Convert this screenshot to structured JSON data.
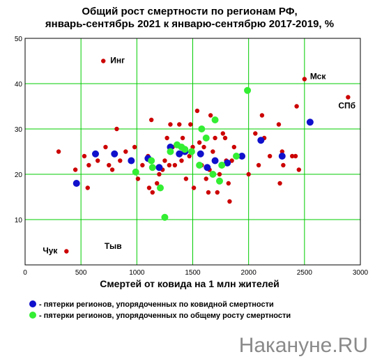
{
  "chart_data": {
    "type": "scatter",
    "title": "Общий рост смертности по регионам РФ, январь-сентябрь 2021 к январю-сентябрю 2017-2019, %",
    "title_lines": [
      "Общий рост смертности по регионам РФ,",
      "январь-сентябрь 2021 к январю-сентябрю 2017-2019, %"
    ],
    "xlabel": "Смертей от ковида на 1 млн жителей",
    "ylabel": "",
    "xlim": [
      0,
      3000
    ],
    "ylim": [
      0,
      50
    ],
    "x_ticks": [
      0,
      500,
      1000,
      1500,
      2000,
      2500,
      3000
    ],
    "y_ticks": [
      10,
      20,
      30,
      40,
      50
    ],
    "grid": true,
    "colors": {
      "grid": "#00cc00",
      "other": "#cc0000",
      "blue": "#1010cc",
      "green": "#33ee33"
    },
    "series": [
      {
        "color": "#cc0000",
        "points": [
          [
            300,
            25
          ],
          [
            370,
            3
          ],
          [
            450,
            21
          ],
          [
            530,
            24
          ],
          [
            560,
            17
          ],
          [
            570,
            22
          ],
          [
            650,
            23
          ],
          [
            700,
            45
          ],
          [
            720,
            26
          ],
          [
            750,
            22
          ],
          [
            780,
            21
          ],
          [
            820,
            30
          ],
          [
            850,
            23
          ],
          [
            900,
            25
          ],
          [
            980,
            26
          ],
          [
            1010,
            19
          ],
          [
            1050,
            22
          ],
          [
            1100,
            24
          ],
          [
            1110,
            17
          ],
          [
            1130,
            32
          ],
          [
            1140,
            16
          ],
          [
            1180,
            18
          ],
          [
            1200,
            20
          ],
          [
            1230,
            21
          ],
          [
            1250,
            23
          ],
          [
            1270,
            28
          ],
          [
            1290,
            22
          ],
          [
            1300,
            31
          ],
          [
            1320,
            26
          ],
          [
            1340,
            22
          ],
          [
            1380,
            31
          ],
          [
            1400,
            23
          ],
          [
            1410,
            28
          ],
          [
            1440,
            19
          ],
          [
            1470,
            24
          ],
          [
            1480,
            31
          ],
          [
            1500,
            26
          ],
          [
            1510,
            17
          ],
          [
            1540,
            34
          ],
          [
            1560,
            27
          ],
          [
            1580,
            22
          ],
          [
            1600,
            26
          ],
          [
            1620,
            19
          ],
          [
            1640,
            16
          ],
          [
            1650,
            21
          ],
          [
            1660,
            33
          ],
          [
            1680,
            25
          ],
          [
            1700,
            28
          ],
          [
            1720,
            16
          ],
          [
            1740,
            20
          ],
          [
            1770,
            29
          ],
          [
            1790,
            28
          ],
          [
            1800,
            23
          ],
          [
            1820,
            18
          ],
          [
            1830,
            14
          ],
          [
            1850,
            23
          ],
          [
            1870,
            26
          ],
          [
            1900,
            24
          ],
          [
            1940,
            24
          ],
          [
            2000,
            20
          ],
          [
            2060,
            29
          ],
          [
            2090,
            22
          ],
          [
            2120,
            33
          ],
          [
            2140,
            28
          ],
          [
            2190,
            24
          ],
          [
            2270,
            31
          ],
          [
            2280,
            18
          ],
          [
            2300,
            25
          ],
          [
            2310,
            22
          ],
          [
            2390,
            24
          ],
          [
            2420,
            24
          ],
          [
            2450,
            21
          ],
          [
            2430,
            35
          ],
          [
            2500,
            41
          ],
          [
            2890,
            37
          ]
        ]
      },
      {
        "name": "пятерки регионов, упорядоченных по ковидной смертности",
        "color": "#1010cc",
        "points": [
          [
            460,
            18
          ],
          [
            630,
            24.5
          ],
          [
            800,
            24.5
          ],
          [
            950,
            23
          ],
          [
            1100,
            23.5
          ],
          [
            1200,
            21.5
          ],
          [
            1300,
            26
          ],
          [
            1380,
            24.5
          ],
          [
            1430,
            25
          ],
          [
            1570,
            24.5
          ],
          [
            1630,
            21.5
          ],
          [
            1700,
            23
          ],
          [
            1810,
            22.5
          ],
          [
            1940,
            24
          ],
          [
            2110,
            27.5
          ],
          [
            2300,
            24
          ],
          [
            2550,
            31.5
          ]
        ]
      },
      {
        "name": "пятерки регионов, упорядоченных по общему росту смертности",
        "color": "#33ee33",
        "points": [
          [
            990,
            20.5
          ],
          [
            1130,
            23
          ],
          [
            1140,
            21.5
          ],
          [
            1210,
            17
          ],
          [
            1250,
            10.5
          ],
          [
            1300,
            25
          ],
          [
            1360,
            26.5
          ],
          [
            1400,
            26
          ],
          [
            1430,
            25.5
          ],
          [
            1490,
            25
          ],
          [
            1560,
            22
          ],
          [
            1580,
            30
          ],
          [
            1620,
            28
          ],
          [
            1680,
            20
          ],
          [
            1700,
            32
          ],
          [
            1740,
            18.5
          ],
          [
            1760,
            22
          ],
          [
            1890,
            24
          ],
          [
            1990,
            38.5
          ]
        ]
      }
    ],
    "annotations": [
      {
        "text": "Инг",
        "x": 700,
        "y": 45
      },
      {
        "text": "Мск",
        "x": 2500,
        "y": 41
      },
      {
        "text": "СПб",
        "x": 2890,
        "y": 37
      },
      {
        "text": "Чук",
        "x": 370,
        "y": 3
      },
      {
        "text": "Тыв",
        "x": 660,
        "y": 4
      }
    ],
    "legend": {
      "placement": "bottom",
      "items": [
        {
          "label": "- пятерки регионов, упорядоченных по ковидной смертности",
          "color": "#1010cc"
        },
        {
          "label": "- пятерки регионов, упорядоченных по общему росту смертности",
          "color": "#33ee33"
        }
      ]
    }
  },
  "watermark": "Накануне.RU"
}
